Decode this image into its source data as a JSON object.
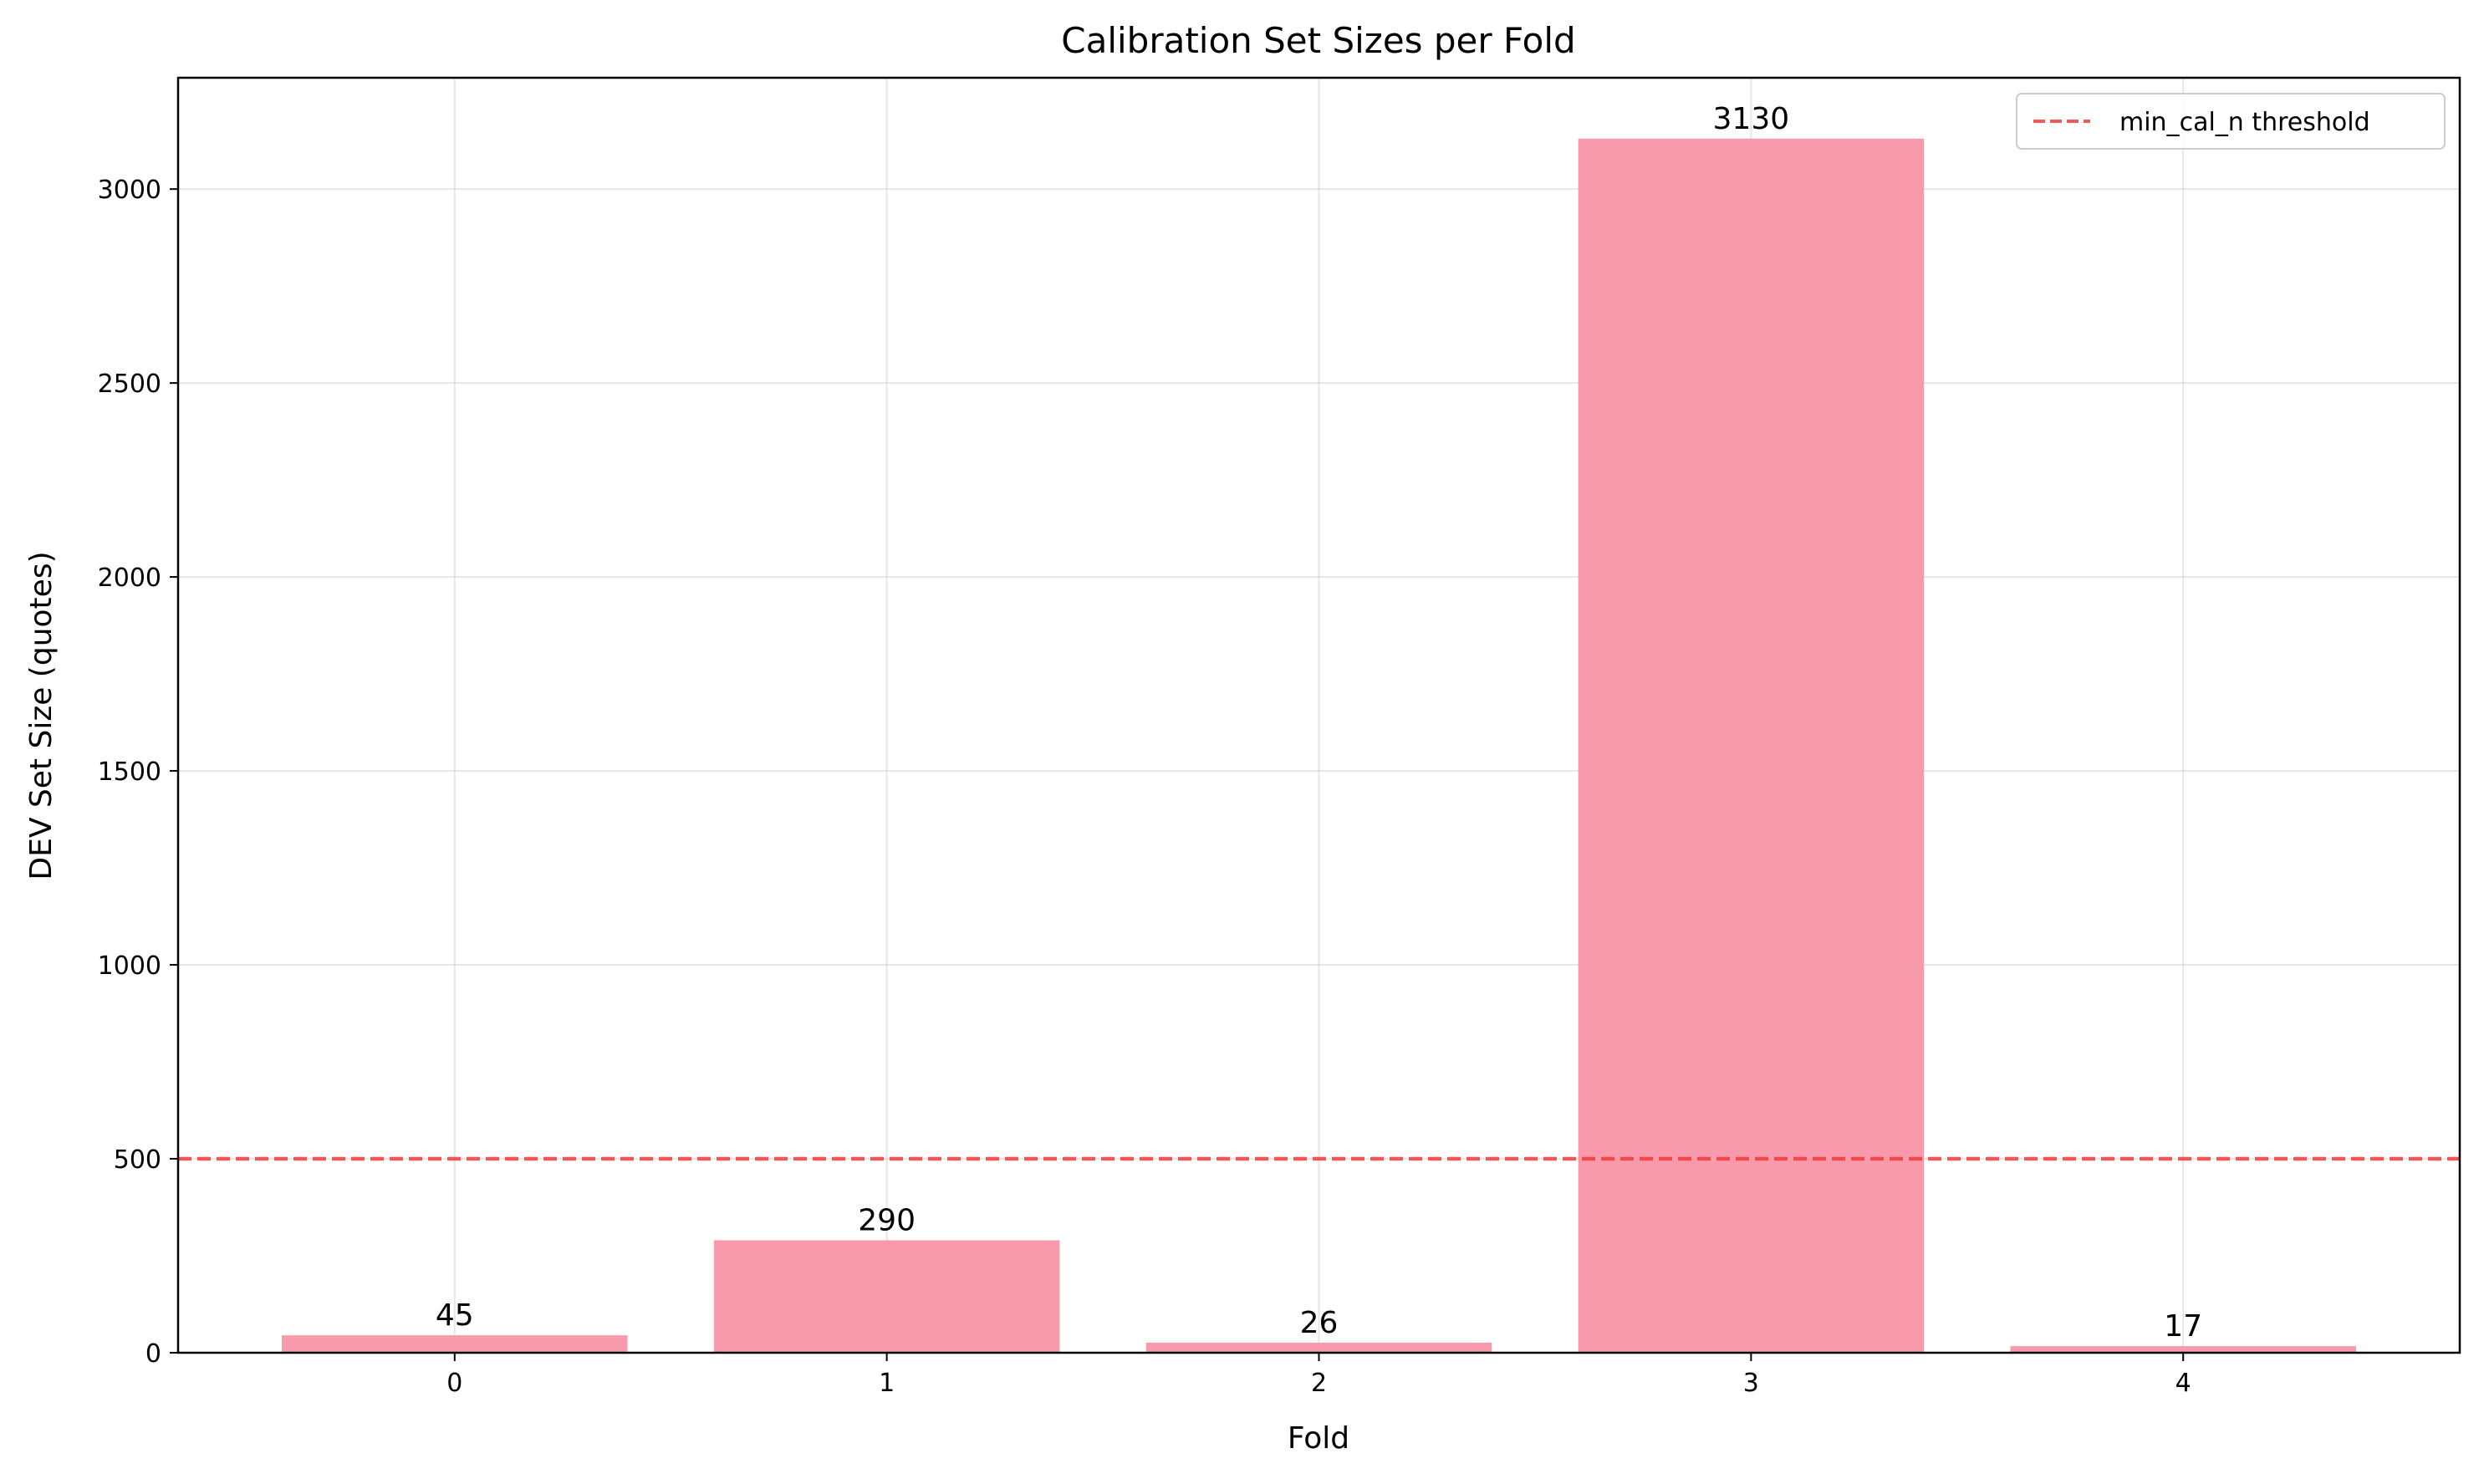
{
  "chart_data": {
    "type": "bar",
    "title": "Calibration Set Sizes per Fold",
    "xlabel": "Fold",
    "ylabel": "DEV Set Size (quotes)",
    "categories": [
      "0",
      "1",
      "2",
      "3",
      "4"
    ],
    "values": [
      45,
      290,
      26,
      3130,
      17
    ],
    "data_labels": [
      "45",
      "290",
      "26",
      "3130",
      "17"
    ],
    "ylim": [
      0,
      3287
    ],
    "yticks": [
      0,
      500,
      1000,
      1500,
      2000,
      2500,
      3000
    ],
    "ytick_labels": [
      "0",
      "500",
      "1000",
      "1500",
      "2000",
      "2500",
      "3000"
    ],
    "grid": true,
    "legend_position": "top-right",
    "threshold": {
      "value": 500,
      "label": "min_cal_n threshold",
      "style": "dashed",
      "color": "#f03c3c"
    },
    "bar_color": "#f89aac"
  }
}
